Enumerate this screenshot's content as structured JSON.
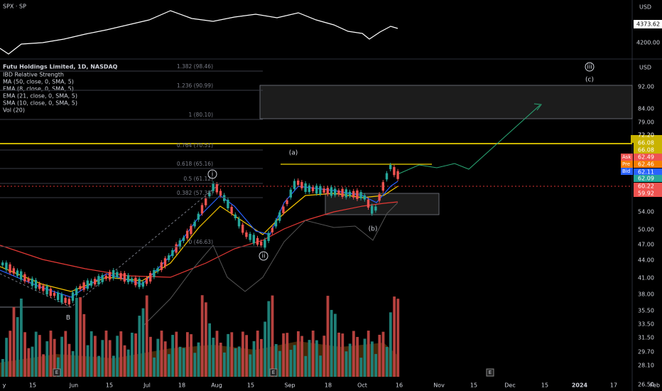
{
  "top_pane": {
    "symbol": "SPX · SP",
    "currency": "USD",
    "price_labels": [
      "4373.62",
      "4200.00"
    ]
  },
  "header": {
    "title": "Futu Holdings Limited, 1D, NASDAQ",
    "indicators": [
      "IBD Relative Strength",
      "MA (50, close, 0, SMA, 5)",
      "EMA (8, close, 0, SMA, 5)",
      "EMA (21, close, 0, SMA, 5)",
      "SMA (10, close, 0, SMA, 5)",
      "Vol (20)"
    ]
  },
  "price_axis": {
    "currency": "USD",
    "labels": [
      "92.00",
      "84.00",
      "79.00",
      "72.20",
      "66.08",
      "66.08",
      "62.49",
      "62.46",
      "62.11",
      "62.09",
      "60.22",
      "59.92",
      "54.00",
      "50.00",
      "47.00",
      "44.00",
      "41.00",
      "38.00",
      "35.50",
      "33.50",
      "31.50",
      "29.70",
      "28.10",
      "26.50"
    ],
    "quote_tags": [
      "Ask",
      "Pre",
      "Bid"
    ]
  },
  "date_axis": [
    "y",
    "15",
    "Jun",
    "15",
    "Jul",
    "18",
    "Aug",
    "15",
    "Sep",
    "18",
    "Oct",
    "16",
    "Nov",
    "15",
    "Dec",
    "15",
    "2024",
    "17",
    "Feb"
  ],
  "fib_levels": [
    "1.382 (98.46)",
    "1.236 (90.99)",
    "1 (80.10)",
    "0.764 (70.51)",
    "0.618 (65.16)",
    "0.5 (61.12)",
    "0.382 (57.38)",
    "0 (46.63)"
  ],
  "wave_labels": [
    "iii",
    "(c)",
    "(a)",
    "i",
    "ii",
    "(b)",
    "B"
  ],
  "earnings_marker": "E"
}
